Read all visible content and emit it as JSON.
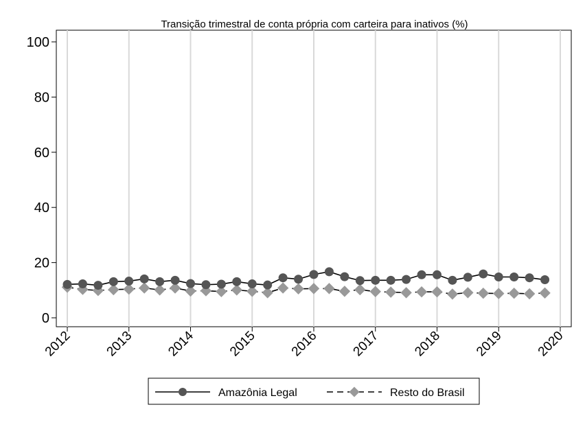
{
  "chart_data": {
    "type": "line",
    "title": "Transição trimestral de conta própria com carteira para inativos (%)",
    "xlabel": "",
    "ylabel": "",
    "xlim": [
      2012,
      2020
    ],
    "ylim": [
      0,
      100
    ],
    "x_ticks": [
      "2012",
      "2013",
      "2014",
      "2015",
      "2016",
      "2017",
      "2018",
      "2019",
      "2020"
    ],
    "y_ticks": [
      "0",
      "20",
      "40",
      "60",
      "80",
      "100"
    ],
    "grid": "vertical",
    "legend_position": "bottom",
    "x": [
      2012.0,
      2012.25,
      2012.5,
      2012.75,
      2013.0,
      2013.25,
      2013.5,
      2013.75,
      2014.0,
      2014.25,
      2014.5,
      2014.75,
      2015.0,
      2015.25,
      2015.5,
      2015.75,
      2016.0,
      2016.25,
      2016.5,
      2016.75,
      2017.0,
      2017.25,
      2017.5,
      2017.75,
      2018.0,
      2018.25,
      2018.5,
      2018.75,
      2019.0,
      2019.25,
      2019.5,
      2019.75
    ],
    "series": [
      {
        "name": "Amazônia Legal",
        "color": "#555555",
        "line_style": "solid",
        "marker": "circle",
        "values": [
          12.1,
          12.3,
          11.8,
          13.1,
          13.3,
          14.1,
          13.1,
          13.6,
          12.4,
          12.0,
          12.2,
          13.1,
          12.3,
          11.9,
          14.5,
          14.0,
          15.7,
          16.7,
          14.9,
          13.5,
          13.6,
          13.6,
          13.9,
          15.6,
          15.6,
          13.6,
          14.7,
          15.9,
          14.8,
          14.8,
          14.5,
          13.8
        ]
      },
      {
        "name": "Resto do Brasil",
        "color": "#999999",
        "line_style": "dashed",
        "marker": "diamond",
        "values": [
          11.1,
          10.3,
          9.9,
          10.2,
          10.4,
          10.8,
          10.1,
          10.8,
          9.7,
          9.8,
          9.5,
          10.1,
          9.6,
          9.1,
          10.8,
          10.5,
          10.6,
          10.6,
          9.6,
          10.2,
          9.5,
          9.3,
          9.1,
          9.4,
          9.4,
          8.6,
          9.1,
          8.9,
          8.8,
          8.9,
          8.7,
          9.0
        ]
      }
    ]
  }
}
